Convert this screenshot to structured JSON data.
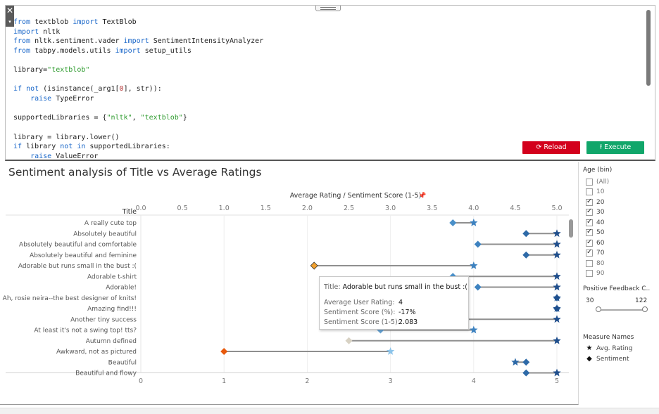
{
  "editor": {
    "close_glyph": "✕",
    "menu_glyph": "▾",
    "code_lines": [
      [
        {
          "t": "from",
          "c": "kw"
        },
        {
          "t": " textblob "
        },
        {
          "t": "import",
          "c": "kw"
        },
        {
          "t": " TextBlob"
        }
      ],
      [
        {
          "t": "import",
          "c": "kw"
        },
        {
          "t": " nltk"
        }
      ],
      [
        {
          "t": "from",
          "c": "kw"
        },
        {
          "t": " nltk.sentiment.vader "
        },
        {
          "t": "import",
          "c": "kw"
        },
        {
          "t": " SentimentIntensityAnalyzer"
        }
      ],
      [
        {
          "t": "from",
          "c": "kw"
        },
        {
          "t": " tabpy.models.utils "
        },
        {
          "t": "import",
          "c": "kw"
        },
        {
          "t": " setup_utils"
        }
      ],
      [],
      [
        {
          "t": "library="
        },
        {
          "t": "\"textblob\"",
          "c": "str"
        }
      ],
      [],
      [
        {
          "t": "if",
          "c": "kw"
        },
        {
          "t": " "
        },
        {
          "t": "not",
          "c": "kw"
        },
        {
          "t": " (isinstance(_arg1["
        },
        {
          "t": "0",
          "c": "num"
        },
        {
          "t": "], str)):"
        }
      ],
      [
        {
          "t": "    "
        },
        {
          "t": "raise",
          "c": "kw"
        },
        {
          "t": " TypeError"
        }
      ],
      [],
      [
        {
          "t": "supportedLibraries = {"
        },
        {
          "t": "\"nltk\"",
          "c": "str"
        },
        {
          "t": ", "
        },
        {
          "t": "\"textblob\"",
          "c": "str"
        },
        {
          "t": "}"
        }
      ],
      [],
      [
        {
          "t": "library = library.lower()"
        }
      ],
      [
        {
          "t": "if",
          "c": "kw"
        },
        {
          "t": " library "
        },
        {
          "t": "not in",
          "c": "kw"
        },
        {
          "t": " supportedLibraries:"
        }
      ],
      [
        {
          "t": "    "
        },
        {
          "t": "raise",
          "c": "kw"
        },
        {
          "t": " ValueError"
        }
      ]
    ],
    "reload_label": "⟳ Reload",
    "execute_label": "⭱ Execute"
  },
  "chart_data": {
    "type": "dumbbell",
    "title": "Sentiment analysis of Title vs Average Ratings",
    "axis_title": "Average Rating / Sentiment Score (1-5)",
    "axis_pin_icon": "pin-icon",
    "row_header": "Title",
    "x_ticks_top": [
      "0.0",
      "0.5",
      "1.0",
      "1.5",
      "2.0",
      "2.5",
      "3.0",
      "3.5",
      "4.0",
      "4.5",
      "5.0"
    ],
    "x_ticks_bottom": [
      "0",
      "1",
      "2",
      "3",
      "4",
      "5"
    ],
    "xlim": [
      0,
      5
    ],
    "colors": {
      "rating": "#1f4e8c",
      "sentiment_blue": "#3d7fc0",
      "connector": "#8c8c8c",
      "orange": "#f39c12",
      "red_orange": "#e8590c",
      "light": "#6fb4e0",
      "beige": "#d8d2c4"
    },
    "rows": [
      {
        "title": "A really cute top",
        "rating": 4.0,
        "sentiment": 3.75,
        "color": "#4a90c9"
      },
      {
        "title": "Absolutely beautiful",
        "rating": 5.0,
        "sentiment": 4.63,
        "color": "#2e6aa8"
      },
      {
        "title": "Absolutely beautiful and comfortable",
        "rating": 5.0,
        "sentiment": 4.05,
        "color": "#3d82c0"
      },
      {
        "title": "Absolutely beautiful and feminine",
        "rating": 5.0,
        "sentiment": 4.63,
        "color": "#2e6aa8"
      },
      {
        "title": "Adorable but runs small in the bust :(",
        "rating": 4.0,
        "sentiment": 2.083,
        "color": "#f0a030"
      },
      {
        "title": "Adorable t-shirt",
        "rating": 5.0,
        "sentiment": 3.75,
        "color": "#4a90c9"
      },
      {
        "title": "Adorable!",
        "rating": 5.0,
        "sentiment": 4.05,
        "color": "#3d82c0"
      },
      {
        "title": "Ah, rosie neira--the best designer of knits!",
        "rating": 5.0,
        "sentiment": 5.0,
        "color": "#2e6aa8"
      },
      {
        "title": "Amazing find!!!",
        "rating": 5.0,
        "sentiment": 5.0,
        "color": "#2e6aa8"
      },
      {
        "title": "Another tiny success",
        "rating": 5.0,
        "sentiment": 3.9,
        "color": "#4a90c9"
      },
      {
        "title": "At least it's not a swing top! tts?",
        "rating": 4.0,
        "sentiment": 2.88,
        "color": "#6aa6d6"
      },
      {
        "title": "Autumn defined",
        "rating": 5.0,
        "sentiment": 2.5,
        "color": "#d8d2c4"
      },
      {
        "title": "Awkward, not as pictured",
        "rating": 3.0,
        "sentiment": 1.0,
        "color": "#e8590c"
      },
      {
        "title": "Beautiful",
        "rating": 4.5,
        "sentiment": 4.63,
        "color": "#2e6aa8"
      },
      {
        "title": "Beautiful and flowy",
        "rating": 5.0,
        "sentiment": 4.63,
        "color": "#2e6aa8"
      }
    ]
  },
  "tooltip": {
    "title_label": "Title:",
    "title_value": "Adorable but runs small in the bust :(",
    "rows": [
      {
        "label": "Average User Rating:",
        "value": "4"
      },
      {
        "label": "Sentiment Score (%):",
        "value": "-17%"
      },
      {
        "label": "Sentiment Score (1-5):",
        "value": "2.083"
      }
    ]
  },
  "sidebar": {
    "age_title": "Age (bin)",
    "age_options": [
      {
        "label": "(All)",
        "checked": false
      },
      {
        "label": "10",
        "checked": false
      },
      {
        "label": "20",
        "checked": true
      },
      {
        "label": "30",
        "checked": true
      },
      {
        "label": "40",
        "checked": true
      },
      {
        "label": "50",
        "checked": true
      },
      {
        "label": "60",
        "checked": true
      },
      {
        "label": "70",
        "checked": true
      },
      {
        "label": "80",
        "checked": false
      },
      {
        "label": "90",
        "checked": false
      }
    ],
    "feedback_title": "Positive Feedback C..",
    "feedback_min": "30",
    "feedback_max": "122",
    "slider_low_fraction": 0.0,
    "slider_high_fraction": 1.0,
    "measure_title": "Measure Names",
    "measure_items": [
      {
        "label": "Avg. Rating",
        "icon": "star-icon"
      },
      {
        "label": "Sentiment",
        "icon": "diamond-icon"
      }
    ]
  }
}
